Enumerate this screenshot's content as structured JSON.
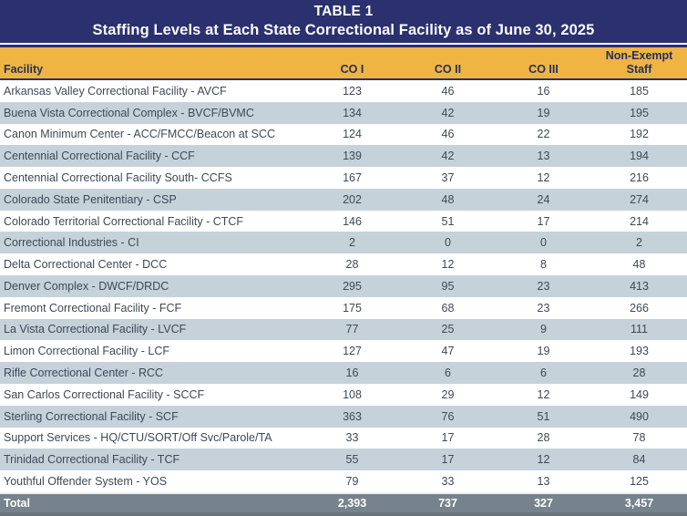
{
  "header": {
    "table_label": "TABLE 1",
    "title": "Staffing Levels at Each State Correctional Facility as of June 30, 2025"
  },
  "table": {
    "columns": {
      "facility": "Facility",
      "co1": "CO I",
      "co2": "CO II",
      "co3": "CO III",
      "non_exempt_line1": "Non-Exempt",
      "non_exempt_line2": "Staff"
    },
    "rows": [
      {
        "facility": "Arkansas Valley Correctional Facility - AVCF",
        "co1": "123",
        "co2": "46",
        "co3": "16",
        "non_exempt": "185"
      },
      {
        "facility": "Buena Vista Correctional Complex - BVCF/BVMC",
        "co1": "134",
        "co2": "42",
        "co3": "19",
        "non_exempt": "195"
      },
      {
        "facility": "Canon Minimum Center - ACC/FMCC/Beacon at SCC",
        "co1": "124",
        "co2": "46",
        "co3": "22",
        "non_exempt": "192"
      },
      {
        "facility": "Centennial Correctional Facility - CCF",
        "co1": "139",
        "co2": "42",
        "co3": "13",
        "non_exempt": "194"
      },
      {
        "facility": "Centennial Correctional Facility South- CCFS",
        "co1": "167",
        "co2": "37",
        "co3": "12",
        "non_exempt": "216"
      },
      {
        "facility": "Colorado State Penitentiary - CSP",
        "co1": "202",
        "co2": "48",
        "co3": "24",
        "non_exempt": "274"
      },
      {
        "facility": "Colorado Territorial Correctional Facility - CTCF",
        "co1": "146",
        "co2": "51",
        "co3": "17",
        "non_exempt": "214"
      },
      {
        "facility": "Correctional Industries - CI",
        "co1": "2",
        "co2": "0",
        "co3": "0",
        "non_exempt": "2"
      },
      {
        "facility": "Delta Correctional Center - DCC",
        "co1": "28",
        "co2": "12",
        "co3": "8",
        "non_exempt": "48"
      },
      {
        "facility": "Denver Complex - DWCF/DRDC",
        "co1": "295",
        "co2": "95",
        "co3": "23",
        "non_exempt": "413"
      },
      {
        "facility": "Fremont Correctional Facility - FCF",
        "co1": "175",
        "co2": "68",
        "co3": "23",
        "non_exempt": "266"
      },
      {
        "facility": "La Vista Correctional Facility - LVCF",
        "co1": "77",
        "co2": "25",
        "co3": "9",
        "non_exempt": "111"
      },
      {
        "facility": "Limon Correctional Facility - LCF",
        "co1": "127",
        "co2": "47",
        "co3": "19",
        "non_exempt": "193"
      },
      {
        "facility": "Rifle Correctional Center - RCC",
        "co1": "16",
        "co2": "6",
        "co3": "6",
        "non_exempt": "28"
      },
      {
        "facility": "San Carlos Correctional Facility - SCCF",
        "co1": "108",
        "co2": "29",
        "co3": "12",
        "non_exempt": "149"
      },
      {
        "facility": "Sterling Correctional Facility - SCF",
        "co1": "363",
        "co2": "76",
        "co3": "51",
        "non_exempt": "490"
      },
      {
        "facility": "Support Services - HQ/CTU/SORT/Off Svc/Parole/TA",
        "co1": "33",
        "co2": "17",
        "co3": "28",
        "non_exempt": "78"
      },
      {
        "facility": "Trinidad Correctional Facility - TCF",
        "co1": "55",
        "co2": "17",
        "co3": "12",
        "non_exempt": "84"
      },
      {
        "facility": "Youthful Offender System - YOS",
        "co1": "79",
        "co2": "33",
        "co3": "13",
        "non_exempt": "125"
      }
    ],
    "total": {
      "label": "Total",
      "co1": "2,393",
      "co2": "737",
      "co3": "327",
      "non_exempt": "3,457"
    }
  },
  "colors": {
    "navy": "#2A316E",
    "gold": "#EFB441",
    "header_text": "#233061",
    "row_text": "#3D4956",
    "alt_row": "#C5D2DA",
    "total_bg": "#76828C",
    "total_edge": "#6A747D",
    "title_text": "#FBFBFF"
  }
}
